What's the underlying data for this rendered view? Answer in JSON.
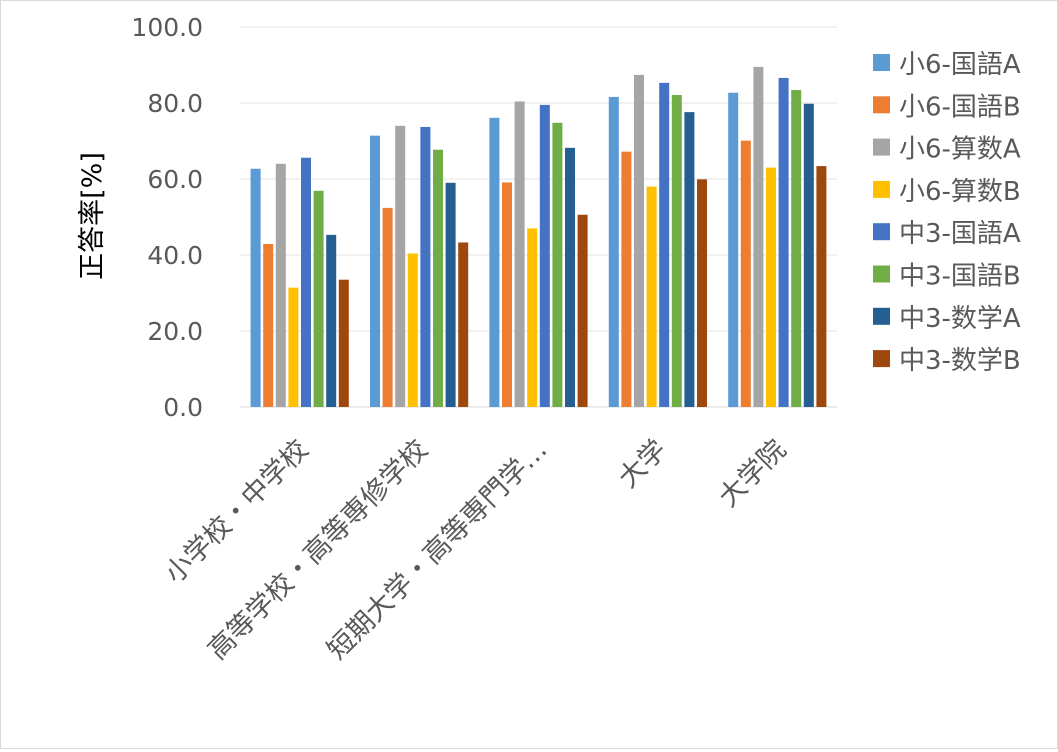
{
  "chart_data": {
    "type": "bar",
    "title": "",
    "xlabel": "",
    "ylabel": "正答率[%]",
    "ylim": [
      0,
      100
    ],
    "yticks": [
      "0.0",
      "20.0",
      "40.0",
      "60.0",
      "80.0",
      "100.0"
    ],
    "grid": true,
    "legend_position": "right",
    "categories": [
      "小学校・中学校",
      "高等学校・高等専修学校",
      "短期大学・高等専門学…",
      "大学",
      "大学院"
    ],
    "series": [
      {
        "name": "小6-国語A",
        "color": "#5b9bd5",
        "values": [
          62.7,
          71.4,
          76.1,
          81.6,
          82.7
        ]
      },
      {
        "name": "小6-国語B",
        "color": "#ed7d31",
        "values": [
          42.9,
          52.4,
          59.1,
          67.2,
          70.1
        ]
      },
      {
        "name": "小6-算数A",
        "color": "#a5a5a5",
        "values": [
          64.0,
          74.0,
          80.4,
          87.4,
          89.5
        ]
      },
      {
        "name": "小6-算数B",
        "color": "#ffc000",
        "values": [
          31.4,
          40.4,
          47.0,
          58.0,
          63.0
        ]
      },
      {
        "name": "中3-国語A",
        "color": "#4472c4",
        "values": [
          65.6,
          73.7,
          79.5,
          85.3,
          86.6
        ]
      },
      {
        "name": "中3-国語B",
        "color": "#70ad47",
        "values": [
          56.9,
          67.7,
          74.8,
          82.1,
          83.4
        ]
      },
      {
        "name": "中3-数学A",
        "color": "#255e91",
        "values": [
          45.3,
          59.0,
          68.2,
          77.6,
          79.8
        ]
      },
      {
        "name": "中3-数学B",
        "color": "#9e480e",
        "values": [
          33.5,
          43.3,
          50.6,
          59.9,
          63.4
        ]
      }
    ]
  }
}
